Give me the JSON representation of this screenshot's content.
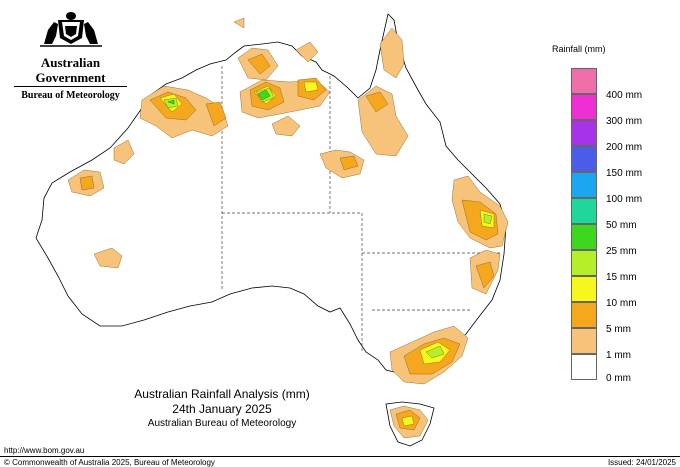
{
  "header": {
    "government": "Australian Government",
    "bureau": "Bureau of Meteorology"
  },
  "legend": {
    "title": "Rainfall (mm)",
    "items": [
      {
        "label": "",
        "color": "#f06ea8"
      },
      {
        "label": "400 mm",
        "color": "#ee2fd2"
      },
      {
        "label": "300 mm",
        "color": "#a633e8"
      },
      {
        "label": "200 mm",
        "color": "#4a5ce8"
      },
      {
        "label": "150 mm",
        "color": "#1aa7f0"
      },
      {
        "label": "100 mm",
        "color": "#1fd79a"
      },
      {
        "label": "50 mm",
        "color": "#3ed61e"
      },
      {
        "label": "25 mm",
        "color": "#b5ef29"
      },
      {
        "label": "15 mm",
        "color": "#f7f71e"
      },
      {
        "label": "10 mm",
        "color": "#f5a81e"
      },
      {
        "label": "5 mm",
        "color": "#f7c27a"
      },
      {
        "label": "1 mm",
        "color": "#ffffff"
      },
      {
        "label": "0 mm",
        "color": ""
      }
    ]
  },
  "title": {
    "line1": "Australian Rainfall Analysis (mm)",
    "line2": "24th January 2025",
    "line3": "Australian Bureau of Meteorology"
  },
  "footer": {
    "url": "http://www.bom.gov.au",
    "copyright": "© Commonwealth of Australia 2025, Bureau of Meteorology",
    "issued": "Issued: 24/01/2025"
  },
  "map_colors": {
    "rain_1mm": "#f7c27a",
    "rain_5mm": "#f5a81e",
    "rain_10mm": "#f7f71e",
    "rain_15mm": "#b5ef29",
    "rain_25mm": "#3ed61e"
  }
}
